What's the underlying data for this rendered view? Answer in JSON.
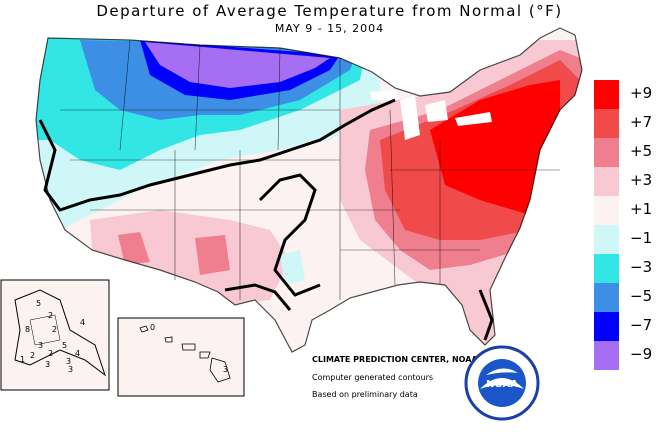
{
  "title": "Departure of Average Temperature from Normal (°F)",
  "subtitle": "MAY 9 - 15, 2004",
  "legend": [
    {
      "label": "+9",
      "color": "#ff0000"
    },
    {
      "label": "+7",
      "color": "#f04a4a"
    },
    {
      "label": "+5",
      "color": "#ef7f8f"
    },
    {
      "label": "+3",
      "color": "#f8c9d2"
    },
    {
      "label": "+1",
      "color": "#fdf2f2"
    },
    {
      "label": "−1",
      "color": "#cff7f7"
    },
    {
      "label": "−3",
      "color": "#33e6e6"
    },
    {
      "label": "−5",
      "color": "#3d8fe6"
    },
    {
      "label": "−7",
      "color": "#0000ff"
    },
    {
      "label": "−9",
      "color": "#a66ef2"
    }
  ],
  "credits": {
    "center": "CLIMATE PREDICTION CENTER, NOAA",
    "line1": "Computer generated contours",
    "line2": "Based on preliminary data"
  },
  "logo": {
    "text": "NOAA",
    "ring_text": "NATIONAL OCEANIC AND ATMOSPHERIC ADMINISTRATION • U.S. DEPARTMENT OF COMMERCE"
  },
  "contour_labels": {
    "alaska": [
      "5",
      "2",
      "8",
      "2",
      "5",
      "3",
      "2",
      "2",
      "3",
      "1",
      "4",
      "3",
      "4",
      "3"
    ],
    "hawaii": [
      "0",
      "3"
    ]
  }
}
